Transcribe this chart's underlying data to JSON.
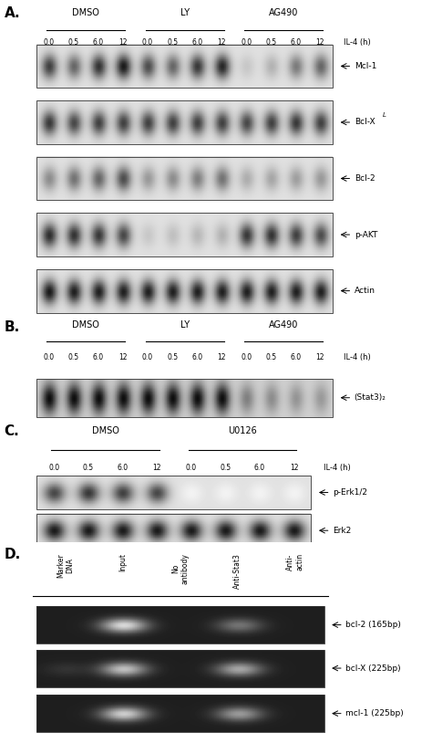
{
  "panel_A_label": "A.",
  "panel_B_label": "B.",
  "panel_C_label": "C.",
  "panel_D_label": "D.",
  "timepoints": [
    "0.0",
    "0.5",
    "6.0",
    "12"
  ],
  "IL4_label": "IL-4 (h)",
  "panel_A_blots": [
    "Mcl-1",
    "Bcl-X",
    "Bcl-2",
    "p-AKT",
    "Actin"
  ],
  "panel_B_blots": [
    "(Stat3)2"
  ],
  "panel_C_blots": [
    "p-Erk1/2",
    "Erk2"
  ],
  "panel_D_labels": [
    "Marker\nDNA",
    "Input",
    "No\nantibody",
    "Anti-Stat3",
    "Anti-\nactin"
  ],
  "panel_D_blots": [
    "bcl-2 (165bp)",
    "bcl-X (225bp)",
    "mcl-1 (225bp)"
  ],
  "bg_color": "#ffffff"
}
